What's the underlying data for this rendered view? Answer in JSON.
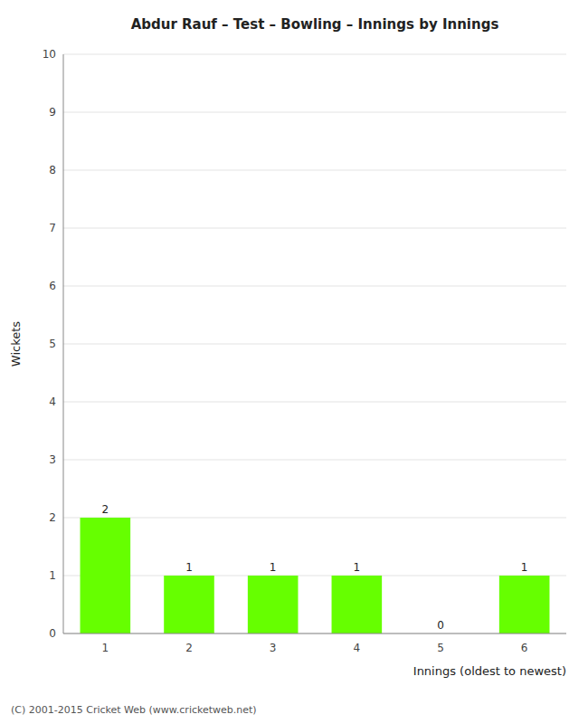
{
  "chart_data": {
    "type": "bar",
    "title": "Abdur Rauf – Test – Bowling – Innings by Innings",
    "xlabel": "Innings (oldest to newest)",
    "ylabel": "Wickets",
    "categories": [
      1,
      2,
      3,
      4,
      5,
      6
    ],
    "values": [
      2,
      1,
      1,
      1,
      0,
      1
    ],
    "color": "#66ff00",
    "ylim": [
      0,
      10
    ],
    "yticks": [
      0,
      1,
      2,
      3,
      4,
      5,
      6,
      7,
      8,
      9,
      10
    ],
    "grid": true,
    "data_labels": true,
    "annotations": [
      "(C) 2001-2015 Cricket Web (www.cricketweb.net)"
    ]
  }
}
